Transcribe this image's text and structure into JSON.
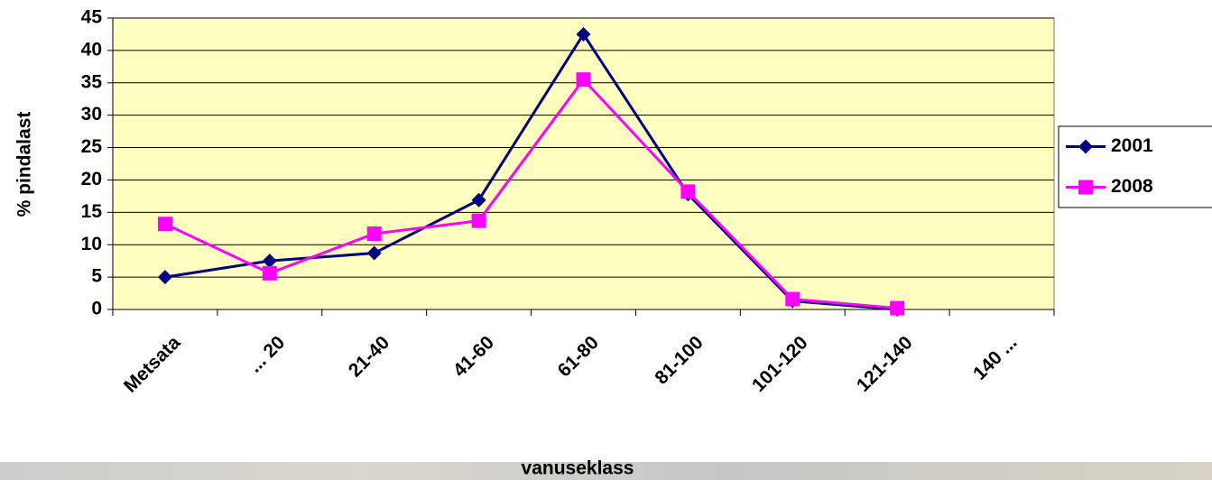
{
  "chart_data": {
    "type": "line",
    "x_label": "vanuseklass",
    "y_label": "% pindalast",
    "categories": [
      "Metsata",
      "... 20",
      "21-40",
      "41-60",
      "61-80",
      "81-100",
      "101-120",
      "121-140",
      "140 ..."
    ],
    "series": [
      {
        "name": "2001",
        "color": "#000080",
        "marker": "diamond",
        "values": [
          5.0,
          7.5,
          8.7,
          16.9,
          42.5,
          17.8,
          1.3,
          0,
          null
        ]
      },
      {
        "name": "2008",
        "color": "#ff00ff",
        "marker": "square",
        "values": [
          13.2,
          5.6,
          11.7,
          13.7,
          35.5,
          18.2,
          1.6,
          0.2,
          null
        ]
      }
    ],
    "ylim": [
      0,
      45
    ],
    "yticks": [
      0,
      5,
      10,
      15,
      20,
      25,
      30,
      35,
      40,
      45
    ],
    "grid": true,
    "plot_background": "#ffffc0",
    "legend": "right"
  }
}
